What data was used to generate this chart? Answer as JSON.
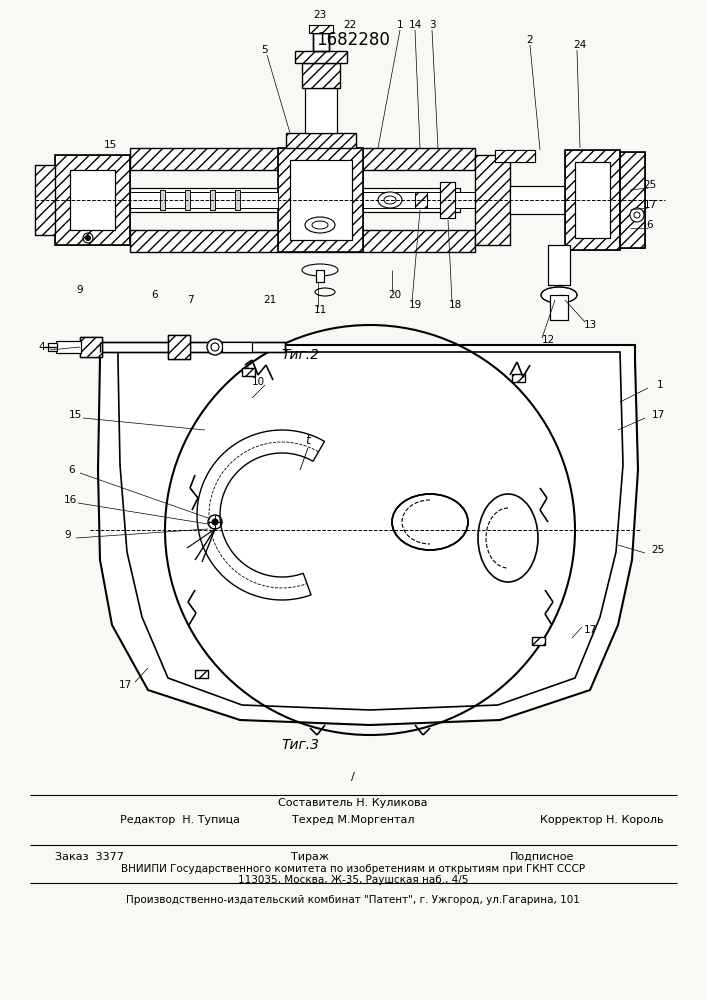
{
  "patent_number": "1682280",
  "background_color": "#f8f8f5",
  "fig2_caption": "Τиг.2",
  "fig3_caption": "Τиг.3",
  "footer_slash": "/",
  "footer_sestavitel": "Составитель Н. Куликова",
  "footer_redaktor": "Редактор  Н. Тупица",
  "footer_tehred": "Техред М.Моргентал",
  "footer_korrektor": "Корректор Н. Король",
  "footer_zakaz": "Заказ  3377",
  "footer_tirazh": "Тираж",
  "footer_podpisnoe": "Подписное",
  "footer_vniipи": "ВНИИПИ Государственного комитета по изобретениям и открытиям при ГКНТ СССР",
  "footer_addr": "113035, Москва, Ж-35, Раушская наб., 4/5",
  "footer_patent": "Производственно-издательский комбинат \"Патент\", г. Ужгород, ул.Гагарина, 101"
}
